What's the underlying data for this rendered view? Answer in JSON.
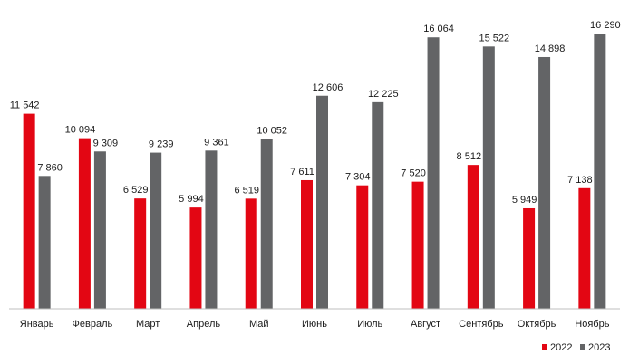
{
  "chart_data": {
    "type": "bar",
    "categories": [
      "Январь",
      "Февраль",
      "Март",
      "Апрель",
      "Май",
      "Июнь",
      "Июль",
      "Август",
      "Сентябрь",
      "Октябрь",
      "Ноябрь"
    ],
    "series": [
      {
        "name": "2022",
        "color": "#e30613",
        "values": [
          11542,
          10094,
          6529,
          5994,
          6519,
          7611,
          7304,
          7520,
          8512,
          5949,
          7138
        ],
        "labels": [
          "11 542",
          "10 094",
          "6 529",
          "5 994",
          "6 519",
          "7 611",
          "7 304",
          "7 520",
          "8 512",
          "5 949",
          "7 138"
        ]
      },
      {
        "name": "2023",
        "color": "#636466",
        "values": [
          7860,
          9309,
          9239,
          9361,
          10052,
          12606,
          12225,
          16064,
          15522,
          14898,
          16290
        ],
        "labels": [
          "7 860",
          "9 309",
          "9 239",
          "9 361",
          "10 052",
          "12 606",
          "12 225",
          "16 064",
          "15 522",
          "14 898",
          "16 290"
        ]
      }
    ],
    "ylim": [
      0,
      17500
    ],
    "grid": false,
    "legend_position": "bottom-right"
  }
}
